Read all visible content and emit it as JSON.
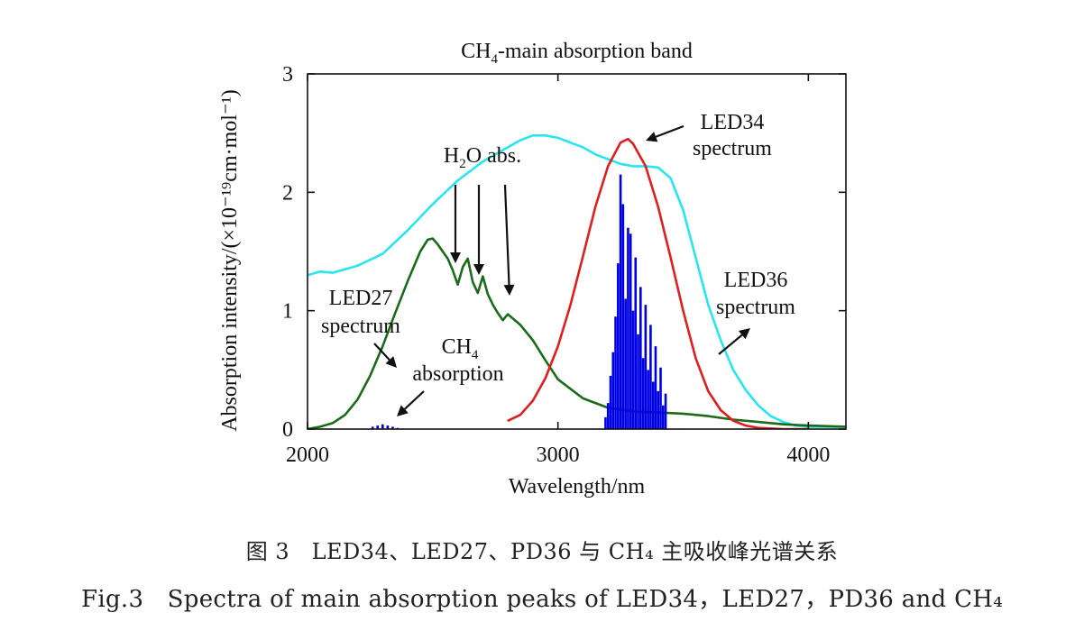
{
  "chart_data": {
    "type": "line",
    "title": "CH4-main absorption band",
    "title_parts": {
      "before": "CH",
      "sub": "4",
      "after": "-main absorption band"
    },
    "xlabel": "Wavelength/nm",
    "ylabel": "Absorption intensity/(×10⁻¹⁹cm·mol⁻¹)",
    "xlim": [
      2000,
      4150
    ],
    "ylim": [
      0,
      3
    ],
    "xticks": [
      2000,
      3000,
      4000
    ],
    "yticks": [
      0,
      1,
      2,
      3
    ],
    "xtick_labels": [
      "2000",
      "3000",
      "4000"
    ],
    "ytick_labels": [
      "0",
      "1",
      "2",
      "3"
    ],
    "grid": false,
    "legend": "none",
    "series": [
      {
        "name": "LED36 spectrum",
        "color": "#29e5f0",
        "x": [
          2000,
          2050,
          2100,
          2200,
          2300,
          2400,
          2500,
          2600,
          2700,
          2800,
          2850,
          2900,
          2950,
          3000,
          3050,
          3100,
          3150,
          3200,
          3250,
          3300,
          3350,
          3400,
          3450,
          3500,
          3550,
          3600,
          3650,
          3700,
          3750,
          3800,
          3850,
          3900,
          3950,
          4000,
          4050,
          4100,
          4150
        ],
        "y": [
          1.3,
          1.33,
          1.32,
          1.38,
          1.48,
          1.68,
          1.9,
          2.1,
          2.26,
          2.38,
          2.44,
          2.48,
          2.48,
          2.46,
          2.42,
          2.38,
          2.32,
          2.28,
          2.24,
          2.22,
          2.22,
          2.21,
          2.12,
          1.85,
          1.45,
          1.05,
          0.75,
          0.5,
          0.33,
          0.2,
          0.11,
          0.06,
          0.03,
          0.02,
          0.02,
          0.02,
          0.02
        ]
      },
      {
        "name": "LED27 spectrum",
        "color": "#1a6b1a",
        "x": [
          2000,
          2050,
          2100,
          2150,
          2200,
          2250,
          2300,
          2350,
          2400,
          2450,
          2480,
          2500,
          2520,
          2540,
          2560,
          2580,
          2600,
          2620,
          2640,
          2660,
          2680,
          2700,
          2720,
          2740,
          2760,
          2780,
          2800,
          2850,
          2900,
          2950,
          3000,
          3100,
          3200,
          3300,
          3400,
          3500,
          3600,
          3700,
          3800,
          3900,
          4000,
          4150
        ],
        "y": [
          0.0,
          0.02,
          0.05,
          0.12,
          0.25,
          0.45,
          0.7,
          0.98,
          1.25,
          1.5,
          1.6,
          1.61,
          1.56,
          1.5,
          1.44,
          1.34,
          1.22,
          1.37,
          1.44,
          1.24,
          1.15,
          1.29,
          1.14,
          1.05,
          0.98,
          0.92,
          0.97,
          0.88,
          0.75,
          0.58,
          0.42,
          0.26,
          0.18,
          0.15,
          0.14,
          0.13,
          0.11,
          0.08,
          0.06,
          0.04,
          0.03,
          0.02
        ]
      },
      {
        "name": "LED34 spectrum",
        "color": "#e01e1e",
        "x": [
          2800,
          2850,
          2900,
          2950,
          3000,
          3050,
          3100,
          3150,
          3200,
          3250,
          3280,
          3300,
          3350,
          3400,
          3450,
          3500,
          3550,
          3600,
          3650,
          3700,
          3750,
          3800,
          3900,
          4000
        ],
        "y": [
          0.07,
          0.12,
          0.24,
          0.43,
          0.7,
          1.05,
          1.46,
          1.88,
          2.22,
          2.42,
          2.45,
          2.41,
          2.22,
          1.88,
          1.45,
          1.0,
          0.6,
          0.32,
          0.16,
          0.07,
          0.03,
          0.01,
          0.0,
          0.0
        ]
      },
      {
        "name": "CH4 absorption",
        "color": "#0000e6",
        "type": "stem",
        "x": [
          2260,
          2280,
          2300,
          2320,
          2340,
          2360,
          3190,
          3200,
          3210,
          3220,
          3230,
          3240,
          3250,
          3260,
          3270,
          3280,
          3290,
          3300,
          3310,
          3320,
          3330,
          3340,
          3350,
          3360,
          3370,
          3380,
          3390,
          3400,
          3410,
          3420,
          3430
        ],
        "y": [
          0.02,
          0.03,
          0.04,
          0.03,
          0.02,
          0.01,
          0.1,
          0.22,
          0.45,
          0.65,
          0.95,
          1.4,
          2.15,
          1.9,
          1.1,
          1.7,
          1.65,
          1.0,
          1.45,
          0.8,
          1.2,
          0.6,
          1.05,
          0.5,
          0.88,
          0.4,
          0.7,
          0.32,
          0.52,
          0.2,
          0.3
        ]
      }
    ],
    "annotations": [
      {
        "id": "led34",
        "lines": [
          "LED34",
          "spectrum"
        ]
      },
      {
        "id": "led36",
        "lines": [
          "LED36",
          "spectrum"
        ]
      },
      {
        "id": "led27",
        "lines": [
          "LED27",
          "spectrum"
        ]
      },
      {
        "id": "ch4",
        "lines": [
          "CH4",
          "absorption"
        ],
        "sub": "4"
      },
      {
        "id": "h2o",
        "lines": [
          "H2O abs."
        ],
        "sub": "2"
      }
    ]
  },
  "caption_cn": "图 3　LED34、LED27、PD36 与 CH₄ 主吸收峰光谱关系",
  "caption_en": "Fig.3　Spectra of main absorption peaks of LED34，LED27，PD36 and CH₄"
}
